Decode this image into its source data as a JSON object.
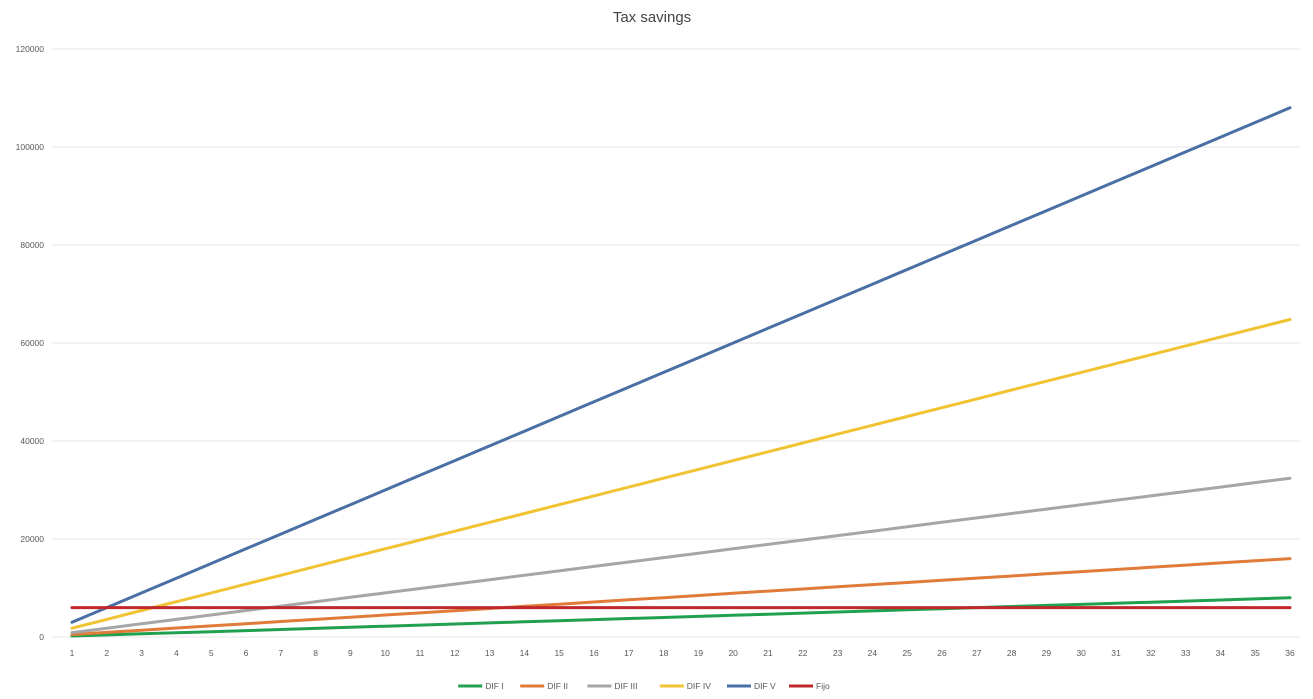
{
  "chart_data": {
    "type": "line",
    "title": "Tax savings",
    "xlabel": "",
    "ylabel": "",
    "x": [
      1,
      2,
      3,
      4,
      5,
      6,
      7,
      8,
      9,
      10,
      11,
      12,
      13,
      14,
      15,
      16,
      17,
      18,
      19,
      20,
      21,
      22,
      23,
      24,
      25,
      26,
      27,
      28,
      29,
      30,
      31,
      32,
      33,
      34,
      35,
      36
    ],
    "ylim": [
      0,
      120000
    ],
    "yticks": [
      0,
      20000,
      40000,
      60000,
      80000,
      100000,
      120000
    ],
    "grid": true,
    "legend_position": "bottom",
    "series": [
      {
        "name": "DIF I",
        "color": "#21a04f",
        "start": 200,
        "end": 8000
      },
      {
        "name": "DIF II",
        "color": "#e07b39",
        "start": 500,
        "end": 16000
      },
      {
        "name": "DIF III",
        "color": "#a6a6a6",
        "start": 900,
        "end": 32400
      },
      {
        "name": "DIF IV",
        "color": "#f1c232",
        "start": 1800,
        "end": 64800
      },
      {
        "name": "DIF V",
        "color": "#4a6fa5",
        "start": 3000,
        "end": 108000
      },
      {
        "name": "Fijo",
        "color": "#c0282d",
        "start": 6000,
        "end": 6000
      }
    ]
  }
}
